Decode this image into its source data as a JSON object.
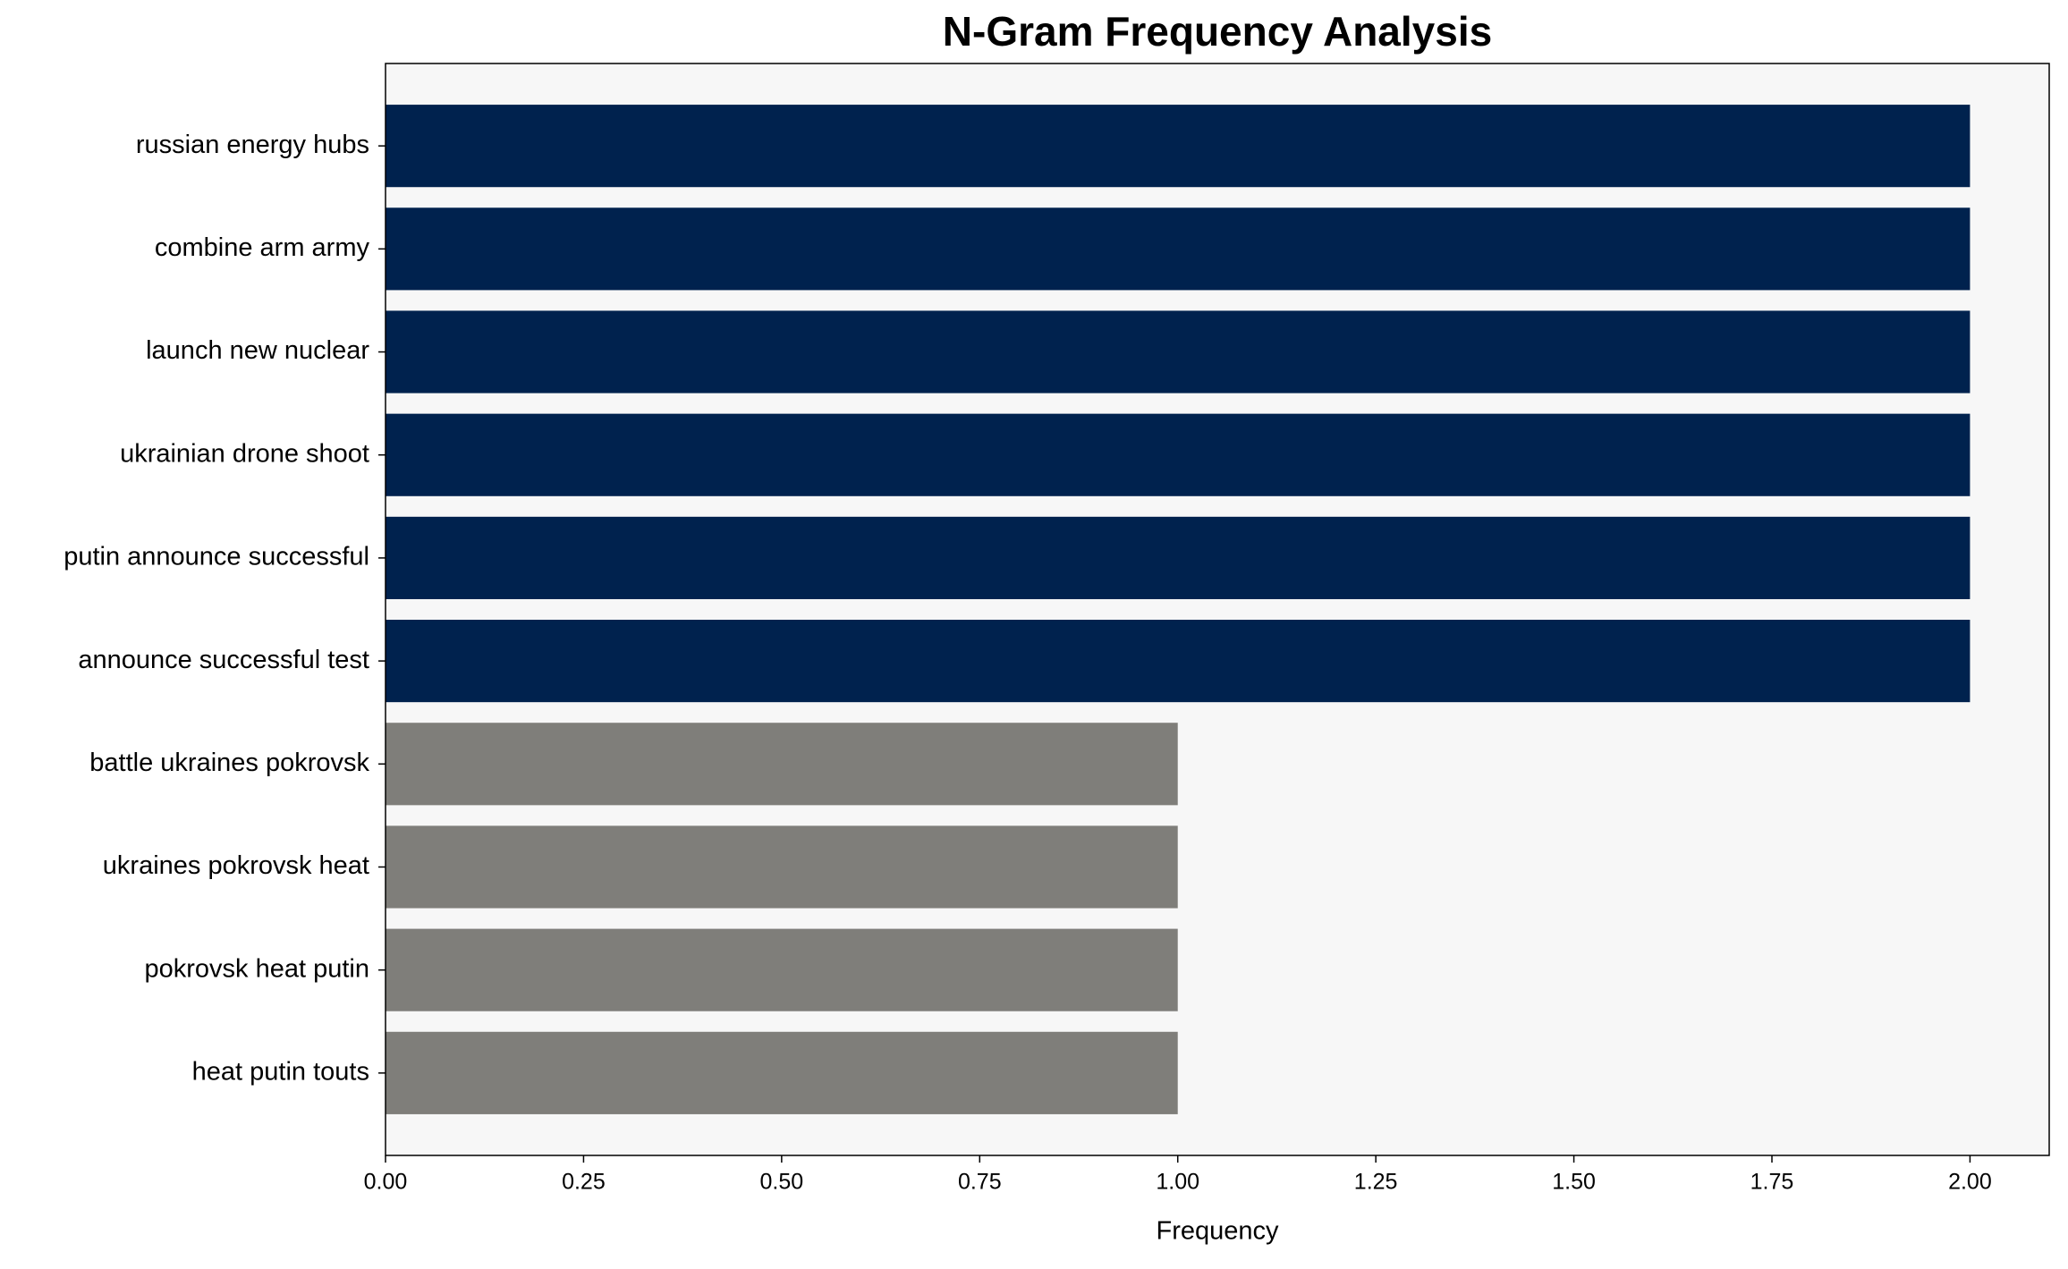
{
  "chart_data": {
    "type": "barh",
    "title": "N-Gram Frequency Analysis",
    "x_label": "Frequency",
    "categories": [
      "russian energy hubs",
      "combine arm army",
      "launch new nuclear",
      "ukrainian drone shoot",
      "putin announce successful",
      "announce successful test",
      "battle ukraines pokrovsk",
      "ukraines pokrovsk heat",
      "pokrovsk heat putin",
      "heat putin touts"
    ],
    "values": [
      2,
      2,
      2,
      2,
      2,
      2,
      1,
      1,
      1,
      1
    ],
    "colors": [
      "#00224e",
      "#00224e",
      "#00224e",
      "#00224e",
      "#00224e",
      "#00224e",
      "#7f7e7a",
      "#7f7e7a",
      "#7f7e7a",
      "#7f7e7a"
    ],
    "xlim": [
      0,
      2.1
    ],
    "xticks": [
      {
        "value": 0,
        "label": "0.00"
      },
      {
        "value": 0.25,
        "label": "0.25"
      },
      {
        "value": 0.5,
        "label": "0.50"
      },
      {
        "value": 0.75,
        "label": "0.75"
      },
      {
        "value": 1,
        "label": "1.00"
      },
      {
        "value": 1.25,
        "label": "1.25"
      },
      {
        "value": 1.5,
        "label": "1.50"
      },
      {
        "value": 1.75,
        "label": "1.75"
      },
      {
        "value": 2,
        "label": "2.00"
      }
    ],
    "plot_background": "#f7f7f7"
  }
}
